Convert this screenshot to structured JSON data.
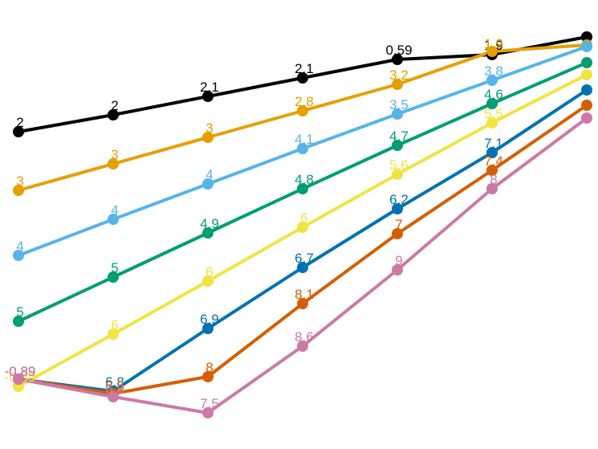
{
  "chart_data": {
    "type": "line",
    "title": "",
    "xlabel": "",
    "ylabel": "",
    "grid": false,
    "legend": "none",
    "x": [
      1,
      2,
      3,
      4,
      5,
      6,
      7
    ],
    "ylim": [
      0,
      10
    ],
    "series": [
      {
        "color": "#000000",
        "values": [
          2,
          2,
          2.1,
          2.1,
          0.59,
          1.9,
          null
        ],
        "labels": [
          "2",
          "2",
          "2.1",
          "2.1",
          "0.59",
          "1.9",
          ""
        ]
      },
      {
        "color": "#E69F00",
        "values": [
          3,
          3,
          3,
          2.8,
          3.2,
          1.9,
          null
        ],
        "labels": [
          "3",
          "3",
          "3",
          "2.8",
          "3.2",
          "1.9",
          ""
        ]
      },
      {
        "color": "#56B4E9",
        "values": [
          4,
          4,
          4,
          4.1,
          3.5,
          3.8,
          null
        ],
        "labels": [
          "4",
          "4",
          "4",
          "4.1",
          "3.5",
          "3.8",
          ""
        ]
      },
      {
        "color": "#009E73",
        "values": [
          5,
          5,
          4.9,
          4.8,
          4.7,
          4.6,
          null
        ],
        "labels": [
          "5",
          "5",
          "4.9",
          "4.8",
          "4.7",
          "4.6",
          ""
        ]
      },
      {
        "color": "#F0E442",
        "values": [
          -0.89,
          6,
          6,
          6,
          5.6,
          5.5,
          null
        ],
        "labels": [
          "-0.89",
          "6",
          "6",
          "6",
          "5.6",
          "5.5",
          ""
        ]
      },
      {
        "color": "#0072B2",
        "values": [
          -0.89,
          6.8,
          6.9,
          6.7,
          6.2,
          7.1,
          null
        ],
        "labels": [
          "-0.89",
          "6.8",
          "6.9",
          "6.7",
          "6.2",
          "7.1",
          ""
        ]
      },
      {
        "color": "#D55E00",
        "values": [
          -0.89,
          6.8,
          8,
          8.1,
          7,
          7.4,
          null
        ],
        "labels": [
          "-0.89",
          "6.8",
          "8",
          "8.1",
          "7",
          "7.4",
          ""
        ]
      },
      {
        "color": "#CC79A7",
        "values": [
          -0.89,
          6.8,
          7.5,
          8.6,
          9,
          8,
          null
        ],
        "labels": [
          "-0.89",
          "6.8",
          "7.5",
          "8.6",
          "9",
          "8",
          ""
        ]
      }
    ]
  }
}
